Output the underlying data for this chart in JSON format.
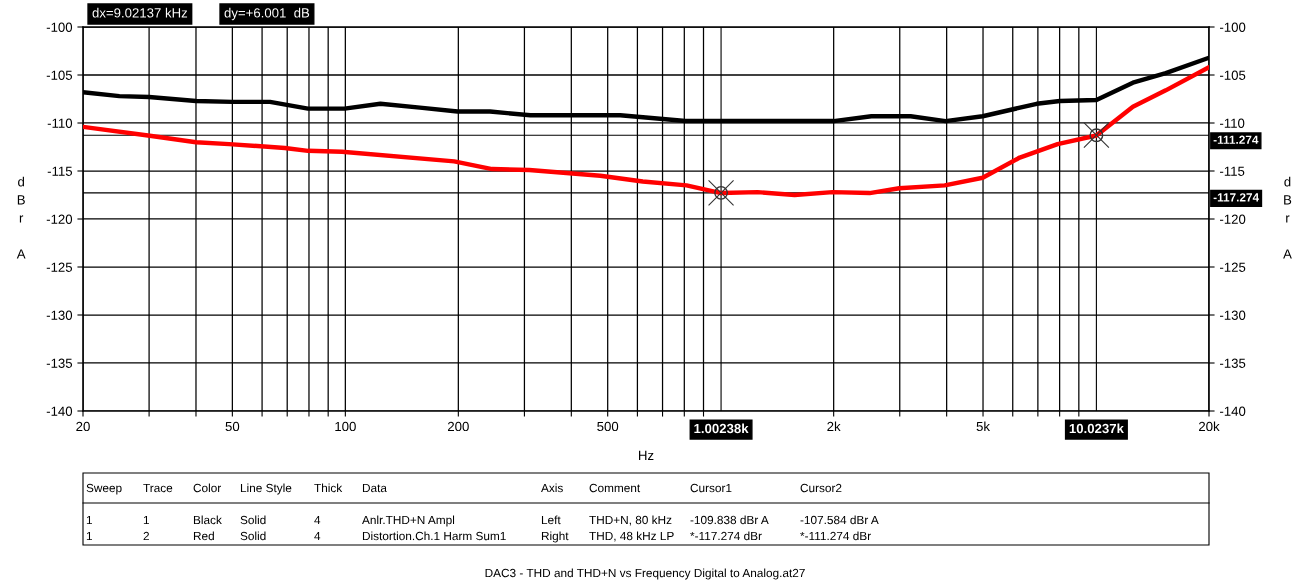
{
  "chart_data": {
    "type": "line",
    "xlabel": "Hz",
    "ylabel": "dBr A",
    "y2label": "dBr A",
    "log": "x",
    "grid": true,
    "legend": false,
    "line_style": "solid",
    "marker": "none",
    "x": [
      20,
      25,
      30,
      40,
      50,
      63,
      79.5,
      99.5,
      124,
      158,
      199,
      243,
      311,
      540,
      806,
      1002.38,
      2000,
      2521,
      3207,
      3972,
      4990,
      6950,
      8012,
      10023.7,
      12540,
      15340,
      20000
    ],
    "series": [
      {
        "color": "#000000",
        "axis": "y",
        "values": [
          -106.8,
          -107.2,
          -107.3,
          -107.7,
          -107.8,
          -107.8,
          -108.5,
          -108.5,
          -108.0,
          -108.4,
          -108.8,
          -108.8,
          -109.2,
          -109.2,
          -109.8,
          -109.8,
          -109.8,
          -109.3,
          -109.3,
          -109.8,
          -109.3,
          -108.0,
          -107.7,
          -107.6,
          -105.8,
          -104.8,
          -103.2
        ]
      },
      {
        "color": "#ff0000",
        "axis": "y2",
        "x": [
          20,
          29.8,
          40,
          49,
          69,
          79.5,
          98,
          195,
          246,
          309,
          478,
          620,
          811,
          1002.38,
          1254,
          1574,
          1987,
          2494,
          2990,
          3953,
          4990,
          6264,
          7900,
          10023.7,
          12540,
          15340,
          20000
        ],
        "values": [
          -110.4,
          -111.3,
          -112.0,
          -112.2,
          -112.6,
          -112.9,
          -113.0,
          -114.0,
          -114.8,
          -114.9,
          -115.5,
          -116.1,
          -116.5,
          -117.3,
          -117.2,
          -117.5,
          -117.2,
          -117.3,
          -116.8,
          -116.5,
          -115.7,
          -113.6,
          -112.2,
          -111.3,
          -108.3,
          -106.6,
          -104.2
        ]
      }
    ],
    "xlim": [
      20,
      20000
    ],
    "xticks": [
      20,
      {
        "value": 30,
        "label": null
      },
      {
        "value": 40,
        "label": null
      },
      50,
      {
        "value": 60,
        "label": null
      },
      {
        "value": 70,
        "label": null
      },
      {
        "value": 80,
        "label": null
      },
      {
        "value": 90,
        "label": null
      },
      100,
      200,
      {
        "value": 300,
        "label": null
      },
      {
        "value": 400,
        "label": null
      },
      500,
      {
        "value": 600,
        "label": null
      },
      {
        "value": 700,
        "label": null
      },
      {
        "value": 800,
        "label": null
      },
      {
        "value": 900,
        "label": null
      },
      {
        "value": 2000,
        "label": "2k"
      },
      {
        "value": 3000,
        "label": null
      },
      {
        "value": 4000,
        "label": null
      },
      {
        "value": 5000,
        "label": "5k"
      },
      {
        "value": 6000,
        "label": null
      },
      {
        "value": 7000,
        "label": null
      },
      {
        "value": 8000,
        "label": null
      },
      {
        "value": 9000,
        "label": null
      },
      {
        "value": 20000,
        "label": "20k"
      }
    ],
    "ylim": [
      -140,
      -100
    ],
    "yticks": [
      -140,
      -135,
      -130,
      -125,
      -120,
      -115,
      -110,
      -105,
      -100
    ],
    "y2lim": [
      -140,
      -100
    ],
    "y2ticks": [
      -140,
      -135,
      -130,
      -125,
      -120,
      -115,
      -110,
      -105,
      -100
    ],
    "ref_lines": [
      {
        "axis": "x",
        "value": 1002.38,
        "label": "1.00238k"
      },
      {
        "axis": "y2",
        "value": -117.274,
        "label": "-117.274"
      },
      {
        "axis": "x",
        "value": 10023.7,
        "label": "10.0237k"
      },
      {
        "axis": "y2",
        "value": -111.274,
        "label": "-111.274"
      }
    ],
    "annotations": [
      "dx=9.02137 kHz",
      "dy=+6.001  dB",
      "Sweep",
      "Trace",
      "Color",
      "Line Style",
      "Thick",
      "Data",
      "Axis",
      "Comment",
      "Cursor1",
      "Cursor2",
      "1",
      "1",
      "Black",
      "Solid",
      "4",
      "Anlr.THD+N Ampl",
      "Left",
      "THD+N, 80 kHz",
      "-109.838 dBr A",
      "-107.584 dBr A",
      "1",
      "2",
      "Red",
      "Solid",
      "4",
      "Distortion.Ch.1 Harm Sum1",
      "Right",
      "THD, 48 kHz LP",
      "*-117.274 dBr",
      "*-111.274 dBr",
      "DAC3 - THD and THD+N vs Frequency Digital to Analog.at27"
    ]
  }
}
